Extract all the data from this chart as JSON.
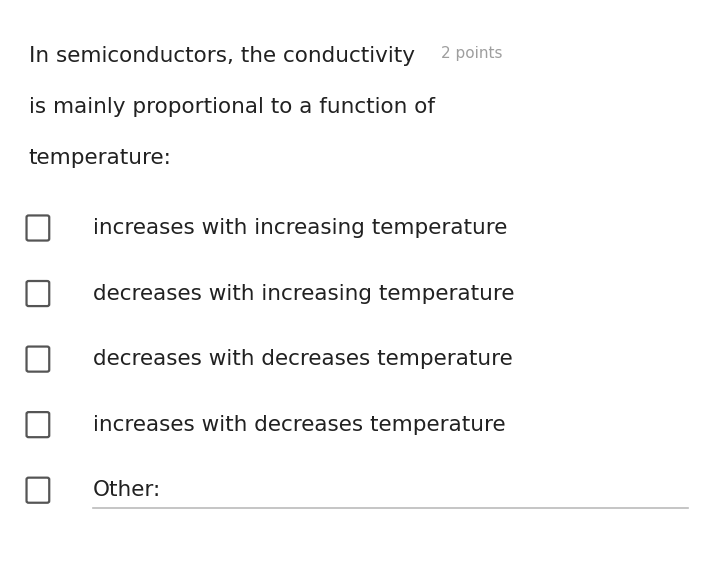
{
  "background_color": "#ffffff",
  "question_line1": "In semiconductors, the conductivity",
  "question_line2": "is mainly proportional to a function of",
  "question_line3": "temperature:",
  "points_text": "2 points",
  "options": [
    "increases with increasing temperature",
    "decreases with increasing temperature",
    "decreases with decreases temperature",
    "increases with decreases temperature",
    "Other:"
  ],
  "question_font_size": 15.5,
  "option_font_size": 15.5,
  "points_font_size": 11,
  "text_color": "#212121",
  "points_color": "#9e9e9e",
  "checkbox_color": "#555555",
  "checkbox_size": 0.038,
  "underline_color": "#bbbbbb"
}
